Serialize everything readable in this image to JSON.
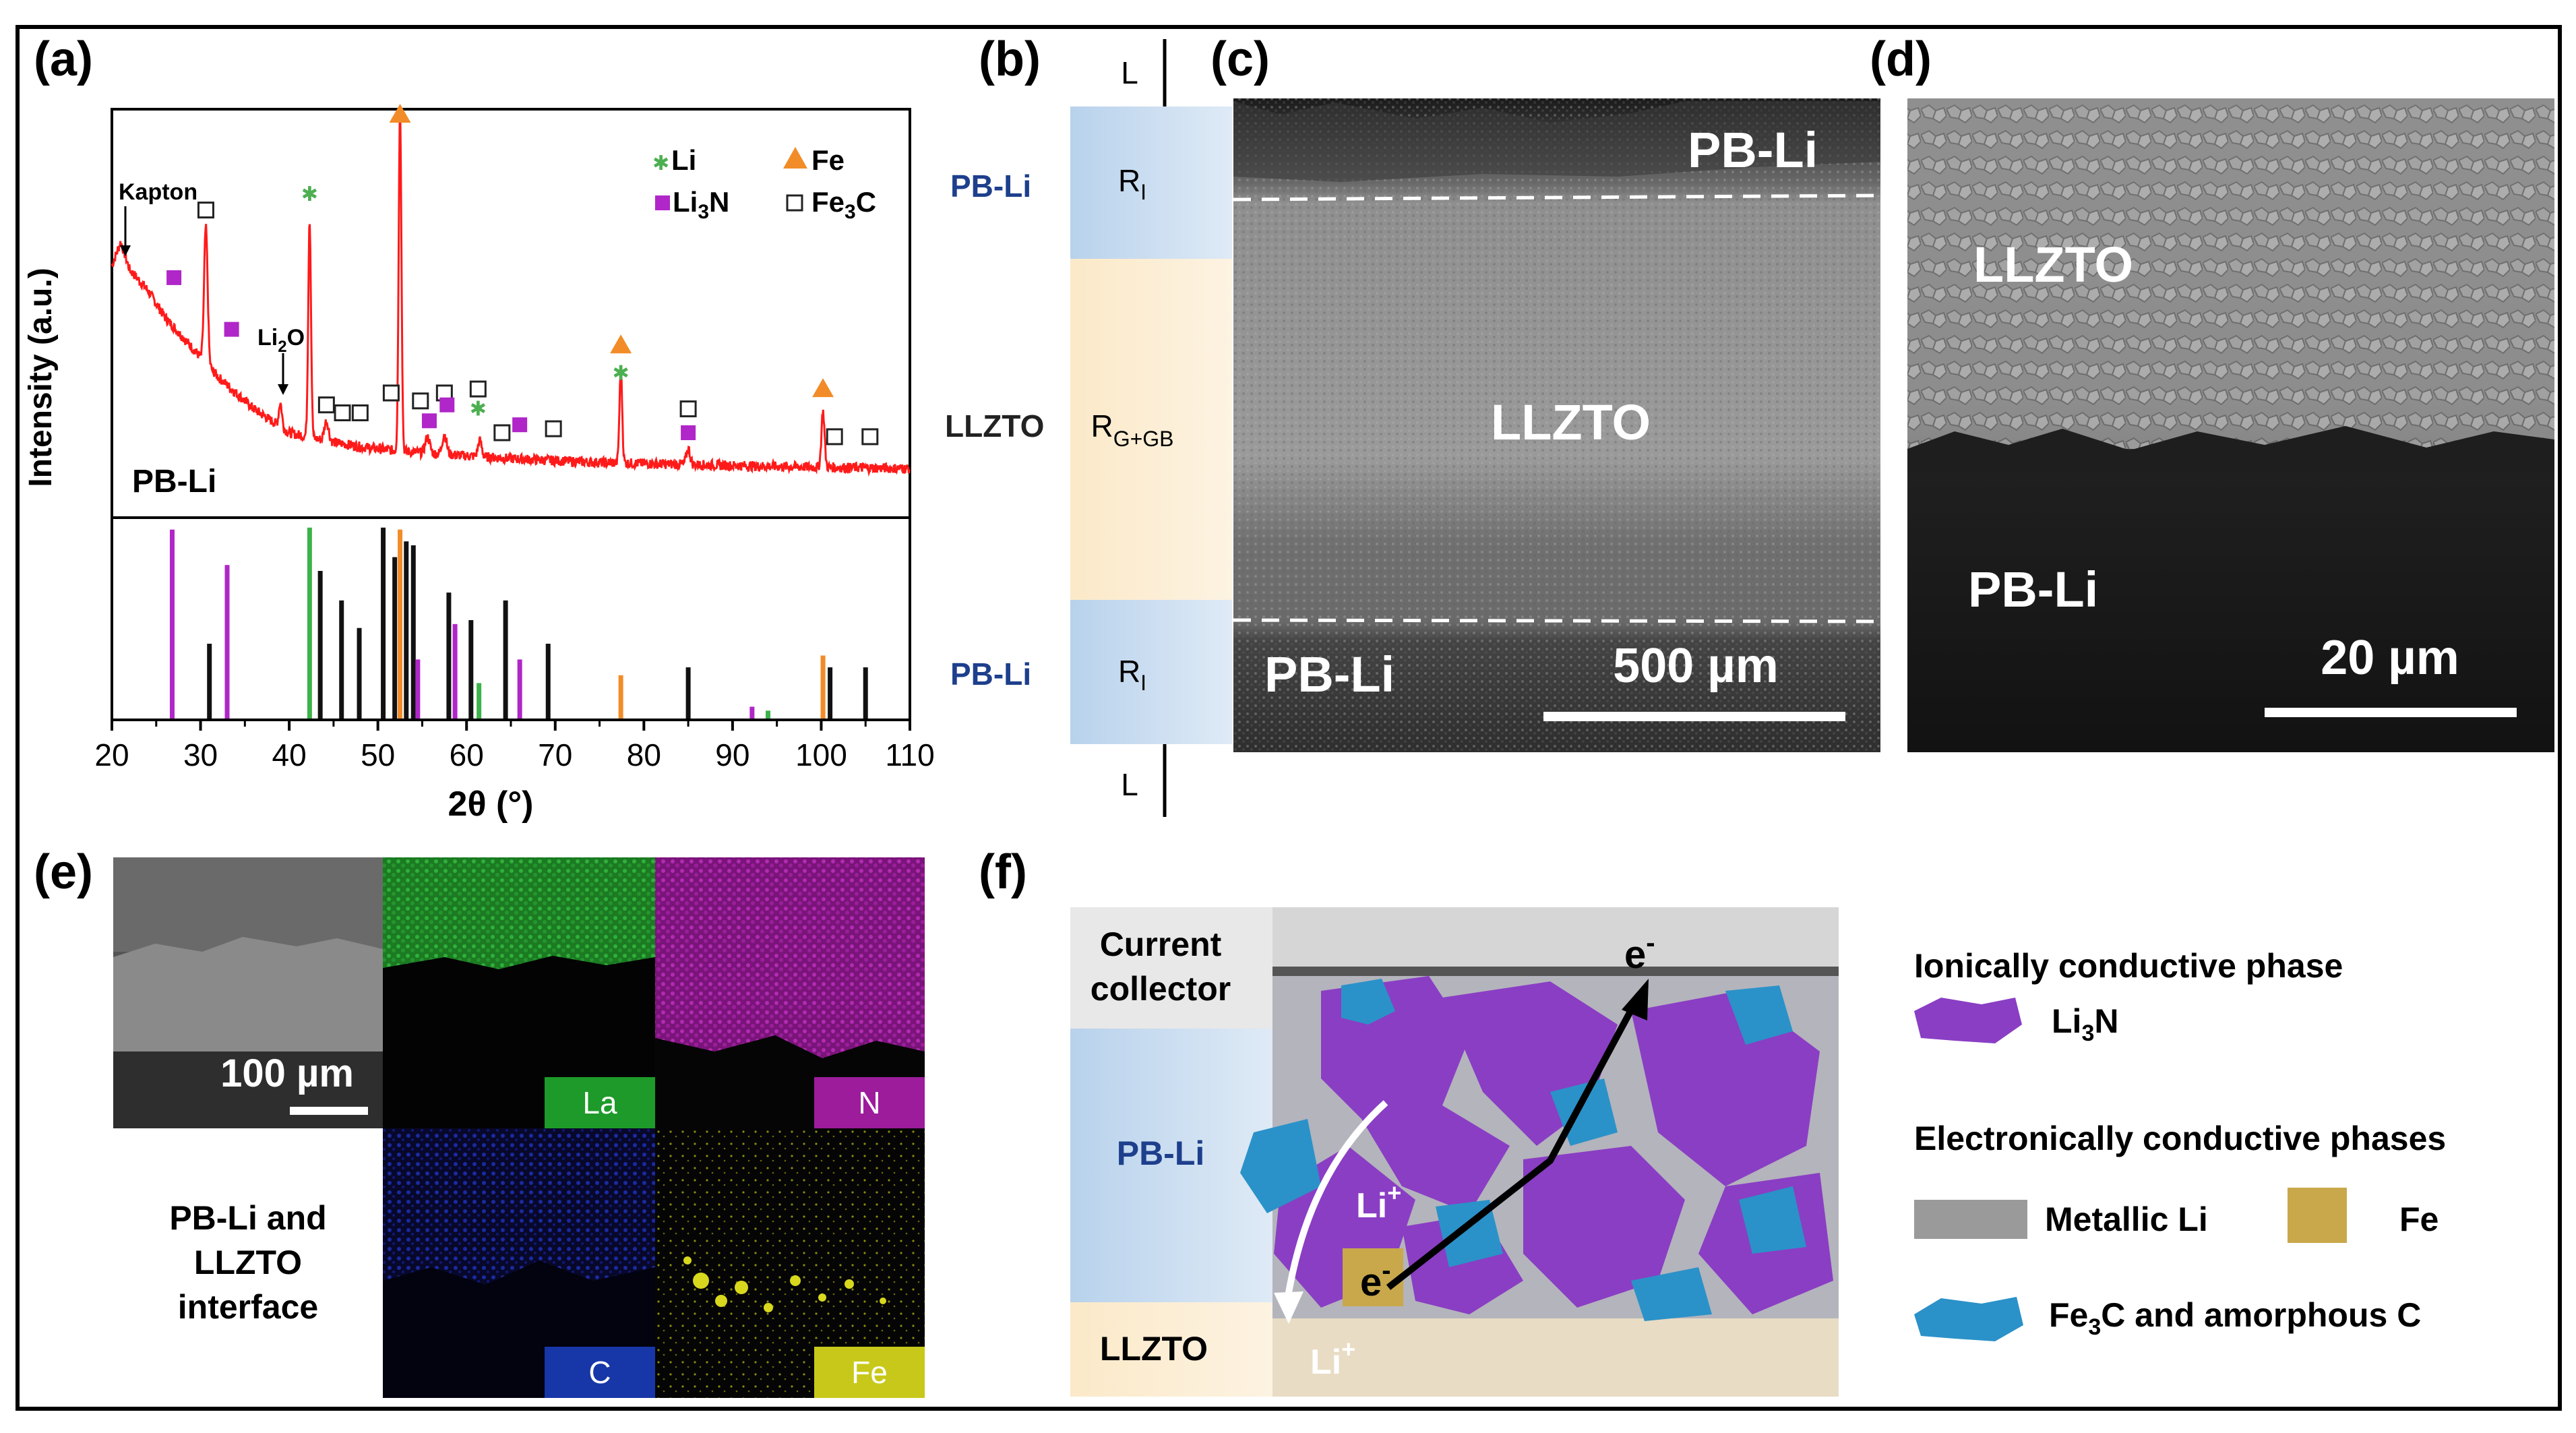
{
  "panels": {
    "a": {
      "label": "(a)",
      "chart_data": {
        "type": "line+stick",
        "xlabel": "2θ (°)",
        "ylabel": "Intensity (a.u.)",
        "xlim": [
          20,
          110
        ],
        "xticks": [
          "20",
          "30",
          "40",
          "50",
          "60",
          "70",
          "80",
          "90",
          "100",
          "110"
        ],
        "sample_label": "PB-Li",
        "legend": [
          {
            "symbol": "star",
            "label": "Li",
            "color": "#4caf50"
          },
          {
            "symbol": "triangle",
            "label": "Fe",
            "color": "#f28c28"
          },
          {
            "symbol": "square-filled",
            "label": "Li3N",
            "color": "#b026c8"
          },
          {
            "symbol": "square-open",
            "label": "Fe3C",
            "color": "#222222"
          }
        ],
        "annotations": [
          {
            "text": "Kapton",
            "x": 21.5
          },
          {
            "text": "Li2O",
            "x": 39.0
          }
        ],
        "pattern": {
          "baseline": [
            [
              20,
              0.62
            ],
            [
              21,
              0.68
            ],
            [
              22,
              0.61
            ],
            [
              24,
              0.56
            ],
            [
              26,
              0.49
            ],
            [
              28,
              0.44
            ],
            [
              30,
              0.39
            ],
            [
              32,
              0.34
            ],
            [
              34,
              0.3
            ],
            [
              36,
              0.26
            ],
            [
              38,
              0.23
            ],
            [
              40,
              0.2
            ],
            [
              44,
              0.18
            ],
            [
              48,
              0.165
            ],
            [
              52,
              0.155
            ],
            [
              58,
              0.145
            ],
            [
              65,
              0.135
            ],
            [
              75,
              0.125
            ],
            [
              85,
              0.12
            ],
            [
              95,
              0.115
            ],
            [
              110,
              0.11
            ]
          ],
          "peaks": [
            {
              "x": 30.6,
              "h": 0.34,
              "w": 0.28
            },
            {
              "x": 39.0,
              "h": 0.06,
              "w": 0.25
            },
            {
              "x": 42.3,
              "h": 0.55,
              "w": 0.22
            },
            {
              "x": 44.2,
              "h": 0.05,
              "w": 0.35
            },
            {
              "x": 52.5,
              "h": 0.86,
              "w": 0.22
            },
            {
              "x": 55.6,
              "h": 0.04,
              "w": 0.35
            },
            {
              "x": 57.5,
              "h": 0.05,
              "w": 0.35
            },
            {
              "x": 61.5,
              "h": 0.04,
              "w": 0.3
            },
            {
              "x": 77.4,
              "h": 0.23,
              "w": 0.22
            },
            {
              "x": 85.0,
              "h": 0.04,
              "w": 0.3
            },
            {
              "x": 100.2,
              "h": 0.14,
              "w": 0.25
            }
          ],
          "markers": [
            {
              "phase": "Fe3C",
              "x": 30.6,
              "y": 0.76
            },
            {
              "phase": "Fe3C",
              "x": 44.2,
              "y": 0.27
            },
            {
              "phase": "Fe3C",
              "x": 46.0,
              "y": 0.25
            },
            {
              "phase": "Fe3C",
              "x": 48.0,
              "y": 0.25
            },
            {
              "phase": "Fe3C",
              "x": 51.5,
              "y": 0.3
            },
            {
              "phase": "Fe3C",
              "x": 54.8,
              "y": 0.28
            },
            {
              "phase": "Fe3C",
              "x": 57.5,
              "y": 0.3
            },
            {
              "phase": "Fe3C",
              "x": 61.3,
              "y": 0.31
            },
            {
              "phase": "Fe3C",
              "x": 64.0,
              "y": 0.2
            },
            {
              "phase": "Fe3C",
              "x": 69.8,
              "y": 0.21
            },
            {
              "phase": "Fe3C",
              "x": 85.0,
              "y": 0.26
            },
            {
              "phase": "Fe3C",
              "x": 101.5,
              "y": 0.19
            },
            {
              "phase": "Fe3C",
              "x": 105.5,
              "y": 0.19
            },
            {
              "phase": "Li3N",
              "x": 27.0,
              "y": 0.59
            },
            {
              "phase": "Li3N",
              "x": 33.5,
              "y": 0.46
            },
            {
              "phase": "Li3N",
              "x": 55.8,
              "y": 0.23
            },
            {
              "phase": "Li3N",
              "x": 57.8,
              "y": 0.27
            },
            {
              "phase": "Li3N",
              "x": 66.0,
              "y": 0.22
            },
            {
              "phase": "Li3N",
              "x": 85.0,
              "y": 0.2
            },
            {
              "phase": "Li",
              "x": 42.3,
              "y": 0.8
            },
            {
              "phase": "Li",
              "x": 61.3,
              "y": 0.26
            },
            {
              "phase": "Li",
              "x": 77.4,
              "y": 0.35
            },
            {
              "phase": "Fe",
              "x": 52.5,
              "y": 1.0
            },
            {
              "phase": "Fe",
              "x": 77.4,
              "y": 0.42
            },
            {
              "phase": "Fe",
              "x": 100.2,
              "y": 0.31
            }
          ]
        },
        "reference_sticks": [
          {
            "x": 26.8,
            "h": 0.96,
            "color": "#b026c8"
          },
          {
            "x": 33.0,
            "h": 0.78,
            "color": "#b026c8"
          },
          {
            "x": 31.0,
            "h": 0.38,
            "color": "#111111"
          },
          {
            "x": 42.3,
            "h": 0.97,
            "color": "#3cb34a"
          },
          {
            "x": 43.5,
            "h": 0.75,
            "color": "#111111"
          },
          {
            "x": 45.9,
            "h": 0.6,
            "color": "#111111"
          },
          {
            "x": 47.9,
            "h": 0.46,
            "color": "#111111"
          },
          {
            "x": 50.6,
            "h": 0.97,
            "color": "#111111"
          },
          {
            "x": 51.9,
            "h": 0.82,
            "color": "#111111"
          },
          {
            "x": 52.5,
            "h": 0.96,
            "color": "#f28c28"
          },
          {
            "x": 53.2,
            "h": 0.9,
            "color": "#111111"
          },
          {
            "x": 54.0,
            "h": 0.88,
            "color": "#111111"
          },
          {
            "x": 54.5,
            "h": 0.3,
            "color": "#b026c8"
          },
          {
            "x": 58.0,
            "h": 0.64,
            "color": "#111111"
          },
          {
            "x": 58.7,
            "h": 0.48,
            "color": "#b026c8"
          },
          {
            "x": 60.5,
            "h": 0.5,
            "color": "#111111"
          },
          {
            "x": 61.4,
            "h": 0.18,
            "color": "#3cb34a"
          },
          {
            "x": 64.4,
            "h": 0.6,
            "color": "#111111"
          },
          {
            "x": 66.0,
            "h": 0.3,
            "color": "#b026c8"
          },
          {
            "x": 69.2,
            "h": 0.38,
            "color": "#111111"
          },
          {
            "x": 77.4,
            "h": 0.22,
            "color": "#f28c28"
          },
          {
            "x": 85.0,
            "h": 0.26,
            "color": "#111111"
          },
          {
            "x": 92.2,
            "h": 0.06,
            "color": "#b026c8"
          },
          {
            "x": 94.0,
            "h": 0.04,
            "color": "#3cb34a"
          },
          {
            "x": 100.2,
            "h": 0.32,
            "color": "#f28c28"
          },
          {
            "x": 101.0,
            "h": 0.26,
            "color": "#111111"
          },
          {
            "x": 105.0,
            "h": 0.26,
            "color": "#111111"
          }
        ]
      }
    },
    "b": {
      "label": "(b)",
      "rows": [
        "PB-Li",
        "LLZTO",
        "PB-Li"
      ],
      "elements": [
        "L",
        "RI",
        "RG+GB",
        "RI",
        "L"
      ]
    },
    "c": {
      "label": "(c)",
      "labels": [
        "PB-Li",
        "LLZTO",
        "PB-Li"
      ],
      "scalebar": "500 µm"
    },
    "d": {
      "label": "(d)",
      "labels": [
        "LLZTO",
        "PB-Li"
      ],
      "scalebar": "20 µm"
    },
    "e": {
      "label": "(e)",
      "scalebar": "100 µm",
      "caption": [
        "PB-Li and",
        "LLZTO",
        "interface"
      ],
      "maps": [
        {
          "element": "La",
          "color": "#1e9a2a"
        },
        {
          "element": "N",
          "color": "#9c1c9c"
        },
        {
          "element": "C",
          "color": "#1736a8"
        },
        {
          "element": "Fe",
          "color": "#c8c81a"
        }
      ]
    },
    "f": {
      "label": "(f)",
      "layers": [
        "Current collector",
        "PB-Li",
        "LLZTO"
      ],
      "carriers": [
        "e-",
        "Li+",
        "e-",
        "Li+"
      ],
      "legend": {
        "ionic_title": "Ionically conductive phase",
        "ionic_item": "Li3N",
        "electronic_title": "Electronically conductive phases",
        "metallic": "Metallic Li",
        "fe": "Fe",
        "fe3c": "Fe3C and amorphous C"
      },
      "colors": {
        "li3n": "#8a3ec4",
        "fe3c": "#2a92c8",
        "fe": "#c8a84a",
        "li": "#9a9a9a"
      }
    }
  }
}
